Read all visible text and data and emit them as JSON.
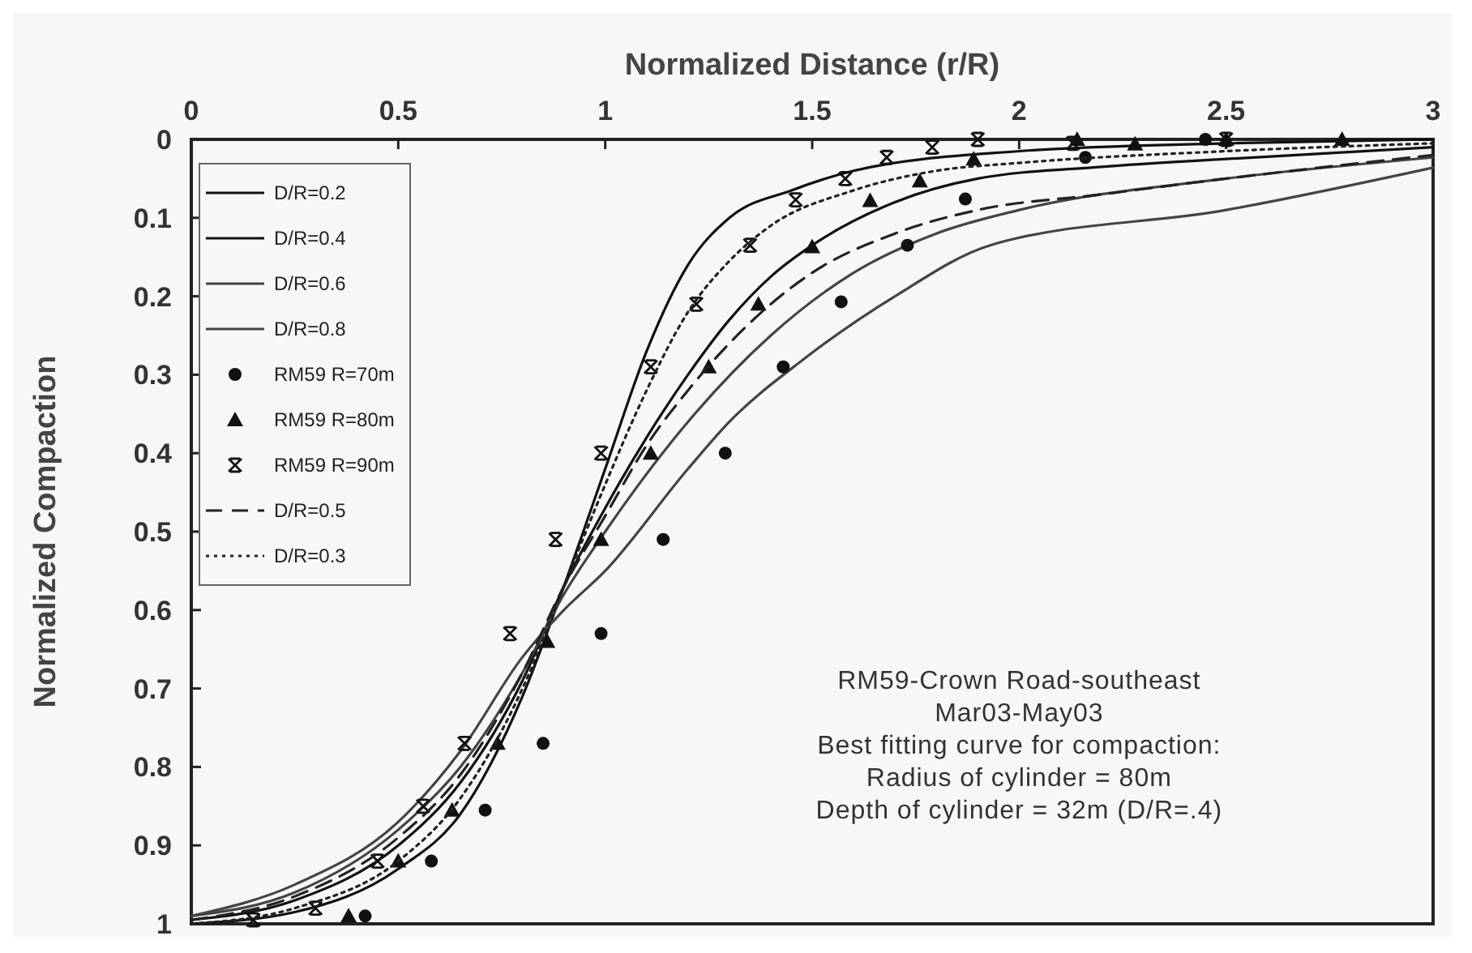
{
  "chart_data": {
    "type": "line",
    "xlabel": "Normalized Distance (r/R)",
    "ylabel": "Normalized Compaction",
    "xlim": [
      0,
      3
    ],
    "xticks": [
      0,
      0.5,
      1,
      1.5,
      2,
      2.5,
      3
    ],
    "ylim": [
      1,
      0
    ],
    "yticks": [
      0,
      0.1,
      0.2,
      0.3,
      0.4,
      0.5,
      0.6,
      0.7,
      0.8,
      0.9,
      1
    ],
    "grid": false,
    "legend": "top left",
    "series": [
      {
        "name": "D/R=0.2",
        "color": "#111111",
        "line_style": "solid",
        "x": [
          0,
          0.25,
          0.5,
          0.65,
          0.8,
          0.9,
          1.0,
          1.1,
          1.2,
          1.3,
          1.45,
          1.6,
          2.0,
          2.5,
          3.0
        ],
        "values": [
          1.0,
          0.985,
          0.93,
          0.86,
          0.71,
          0.57,
          0.42,
          0.27,
          0.16,
          0.1,
          0.065,
          0.04,
          0.015,
          0.005,
          0
        ]
      },
      {
        "name": "D/R=0.4",
        "color": "#111111",
        "line_style": "solid",
        "x": [
          0,
          0.25,
          0.5,
          0.65,
          0.8,
          0.9,
          1.0,
          1.1,
          1.2,
          1.3,
          1.4,
          1.5,
          1.7,
          1.9,
          2.2,
          2.5,
          3.0
        ],
        "values": [
          0.995,
          0.97,
          0.9,
          0.82,
          0.69,
          0.57,
          0.47,
          0.38,
          0.3,
          0.23,
          0.175,
          0.135,
          0.08,
          0.05,
          0.035,
          0.025,
          0.01
        ]
      },
      {
        "name": "D/R=0.6",
        "color": "#444444",
        "line_style": "solid",
        "x": [
          0,
          0.25,
          0.5,
          0.65,
          0.8,
          0.9,
          1.0,
          1.2,
          1.4,
          1.6,
          1.8,
          2.0,
          2.5,
          3.0
        ],
        "values": [
          0.99,
          0.96,
          0.88,
          0.8,
          0.68,
          0.58,
          0.5,
          0.36,
          0.25,
          0.17,
          0.12,
          0.09,
          0.05,
          0.023
        ]
      },
      {
        "name": "D/R=0.8",
        "color": "#444444",
        "line_style": "solid",
        "x": [
          0,
          0.25,
          0.5,
          0.65,
          0.8,
          0.9,
          1.0,
          1.2,
          1.3,
          1.48,
          1.7,
          1.93,
          2.5,
          3.0
        ],
        "values": [
          0.99,
          0.95,
          0.87,
          0.78,
          0.66,
          0.6,
          0.55,
          0.42,
          0.36,
          0.28,
          0.2,
          0.135,
          0.09,
          0.036
        ]
      },
      {
        "name": "RM59 R=70m",
        "type": "scatter",
        "marker": "circle",
        "color": "#111111",
        "x": [
          0.42,
          0.58,
          0.71,
          0.85,
          0.99,
          1.14,
          1.29,
          1.43,
          1.57,
          1.73,
          1.87,
          2.16,
          2.45
        ],
        "values": [
          0.99,
          0.92,
          0.855,
          0.77,
          0.63,
          0.51,
          0.4,
          0.29,
          0.207,
          0.135,
          0.076,
          0.023,
          0
        ]
      },
      {
        "name": "RM59 R=80m",
        "type": "scatter",
        "marker": "triangle",
        "color": "#111111",
        "x": [
          0.38,
          0.5,
          0.63,
          0.74,
          0.86,
          0.99,
          1.11,
          1.25,
          1.37,
          1.5,
          1.64,
          1.76,
          1.89,
          2.14,
          2.28,
          2.5,
          2.78
        ],
        "values": [
          0.99,
          0.92,
          0.855,
          0.77,
          0.64,
          0.51,
          0.4,
          0.29,
          0.21,
          0.137,
          0.078,
          0.053,
          0.025,
          0,
          0.006,
          0,
          0
        ]
      },
      {
        "name": "RM59 R=90m",
        "type": "scatter",
        "marker": "cross",
        "color": "#111111",
        "x": [
          0.15,
          0.3,
          0.45,
          0.56,
          0.66,
          0.77,
          0.88,
          0.99,
          1.11,
          1.22,
          1.35,
          1.46,
          1.58,
          1.68,
          1.79,
          1.9,
          2.13,
          2.5
        ],
        "values": [
          0.995,
          0.98,
          0.92,
          0.85,
          0.77,
          0.63,
          0.51,
          0.4,
          0.29,
          0.21,
          0.135,
          0.077,
          0.05,
          0.023,
          0.01,
          0,
          0.005,
          0
        ]
      },
      {
        "name": "D/R=0.5",
        "color": "#222222",
        "line_style": "dashed",
        "x": [
          0,
          0.25,
          0.5,
          0.65,
          0.8,
          0.9,
          1.0,
          1.1,
          1.2,
          1.3,
          1.5,
          1.7,
          1.9,
          2.2,
          2.5,
          3.0
        ],
        "values": [
          0.995,
          0.965,
          0.89,
          0.81,
          0.68,
          0.57,
          0.48,
          0.39,
          0.32,
          0.26,
          0.17,
          0.12,
          0.09,
          0.07,
          0.05,
          0.02
        ]
      },
      {
        "name": "D/R=0.3",
        "color": "#222222",
        "line_style": "dotted",
        "x": [
          0,
          0.25,
          0.5,
          0.65,
          0.8,
          0.9,
          1.0,
          1.1,
          1.2,
          1.3,
          1.4,
          1.6,
          1.8,
          2.0,
          2.5,
          3.0
        ],
        "values": [
          1.0,
          0.98,
          0.92,
          0.84,
          0.7,
          0.57,
          0.44,
          0.32,
          0.22,
          0.155,
          0.11,
          0.065,
          0.04,
          0.03,
          0.015,
          0.005
        ]
      }
    ],
    "annotations": [
      "RM59-Crown Road-southeast",
      "Mar03-May03",
      "Best fitting curve for compaction:",
      "Radius of cylinder = 80m",
      "Depth of cylinder = 32m (D/R=.4)"
    ]
  }
}
